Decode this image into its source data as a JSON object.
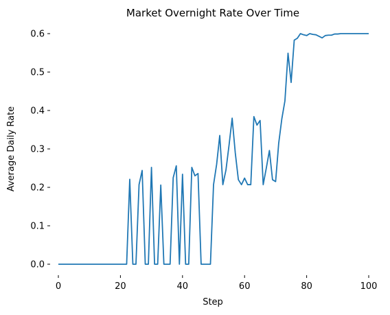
{
  "chart_data": {
    "type": "line",
    "title": "Market Overnight Rate Over Time",
    "xlabel": "Step",
    "ylabel": "Average Daily Rate",
    "xlim": [
      0,
      100
    ],
    "ylim": [
      0,
      0.6
    ],
    "xticks": [
      0,
      20,
      40,
      60,
      80,
      100
    ],
    "yticks": [
      0.0,
      0.1,
      0.2,
      0.3,
      0.4,
      0.5,
      0.6
    ],
    "xtick_labels": [
      "0",
      "20",
      "40",
      "60",
      "80",
      "100"
    ],
    "ytick_labels": [
      "0.0",
      "0.1",
      "0.2",
      "0.3",
      "0.4",
      "0.5",
      "0.6"
    ],
    "grid": false,
    "series": [
      {
        "color": "#1f77b4",
        "x": [
          0,
          1,
          2,
          3,
          4,
          5,
          6,
          7,
          8,
          9,
          10,
          11,
          12,
          13,
          14,
          15,
          16,
          17,
          18,
          19,
          20,
          21,
          22,
          23,
          24,
          25,
          26,
          27,
          28,
          29,
          30,
          31,
          32,
          33,
          34,
          35,
          36,
          37,
          38,
          39,
          40,
          41,
          42,
          43,
          44,
          45,
          46,
          47,
          48,
          49,
          50,
          51,
          52,
          53,
          54,
          55,
          56,
          57,
          58,
          59,
          60,
          61,
          62,
          63,
          64,
          65,
          66,
          67,
          68,
          69,
          70,
          71,
          72,
          73,
          74,
          75,
          76,
          77,
          78,
          79,
          80,
          81,
          82,
          83,
          84,
          85,
          86,
          87,
          88,
          89,
          90,
          91,
          92,
          93,
          94,
          95,
          96,
          97,
          98,
          99,
          100
        ],
        "y": [
          0,
          0,
          0,
          0,
          0,
          0,
          0,
          0,
          0,
          0,
          0,
          0,
          0,
          0,
          0,
          0,
          0,
          0,
          0,
          0,
          0,
          0,
          0,
          0.221,
          0,
          0,
          0.207,
          0.244,
          0,
          0,
          0.252,
          0,
          0,
          0.206,
          0,
          0,
          0,
          0.225,
          0.256,
          0,
          0.234,
          0,
          0,
          0.252,
          0.23,
          0.236,
          0,
          0,
          0,
          0,
          0.207,
          0.26,
          0.335,
          0.207,
          0.245,
          0.31,
          0.38,
          0.29,
          0.22,
          0.207,
          0.224,
          0.207,
          0.207,
          0.384,
          0.362,
          0.374,
          0.207,
          0.25,
          0.296,
          0.22,
          0.215,
          0.315,
          0.378,
          0.425,
          0.549,
          0.473,
          0.583,
          0.588,
          0.6,
          0.597,
          0.595,
          0.6,
          0.598,
          0.597,
          0.593,
          0.589,
          0.595,
          0.596,
          0.596,
          0.599,
          0.599,
          0.6,
          0.6,
          0.6,
          0.6,
          0.6,
          0.6,
          0.6,
          0.6,
          0.6,
          0.6
        ]
      }
    ]
  }
}
